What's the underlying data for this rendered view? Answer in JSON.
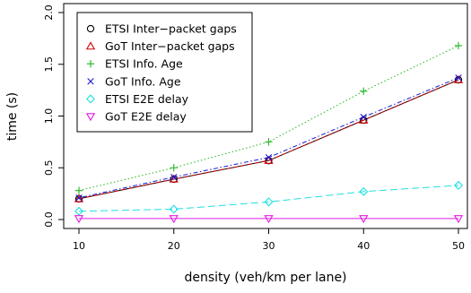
{
  "chart_data": {
    "type": "line",
    "xlabel": "density (veh/km per lane)",
    "ylabel": "time (s)",
    "x": [
      10,
      20,
      30,
      40,
      50
    ],
    "xticks": [
      "10",
      "20",
      "30",
      "40",
      "50"
    ],
    "yticks": [
      "0.0",
      "0.5",
      "1.0",
      "1.5",
      "2.0"
    ],
    "xlim": [
      10,
      50
    ],
    "ylim": [
      0,
      2.0
    ],
    "grid": false,
    "legend_position": "top-left",
    "series": [
      {
        "name": "ETSI Inter−packet gaps",
        "values": [
          0.2,
          0.39,
          0.57,
          0.96,
          1.35
        ],
        "color": "#000000",
        "marker": "circle",
        "line": "solid"
      },
      {
        "name": "GoT Inter−packet gaps",
        "values": [
          0.2,
          0.39,
          0.57,
          0.96,
          1.35
        ],
        "color": "#d40000",
        "marker": "triangle-up",
        "line": "dashed"
      },
      {
        "name": "ETSI Info. Age",
        "values": [
          0.28,
          0.5,
          0.75,
          1.24,
          1.68
        ],
        "color": "#22b522",
        "marker": "plus",
        "line": "dotted"
      },
      {
        "name": "GoT Info. Age",
        "values": [
          0.21,
          0.41,
          0.6,
          0.99,
          1.37
        ],
        "color": "#1a1ad4",
        "marker": "cross",
        "line": "dotdash"
      },
      {
        "name": "ETSI E2E delay",
        "values": [
          0.08,
          0.1,
          0.17,
          0.27,
          0.33
        ],
        "color": "#1ce0e0",
        "marker": "diamond",
        "line": "longdash"
      },
      {
        "name": "GoT E2E delay",
        "values": [
          0.01,
          0.01,
          0.01,
          0.01,
          0.01
        ],
        "color": "#e01ee0",
        "marker": "triangle-down",
        "line": "solid"
      }
    ]
  }
}
